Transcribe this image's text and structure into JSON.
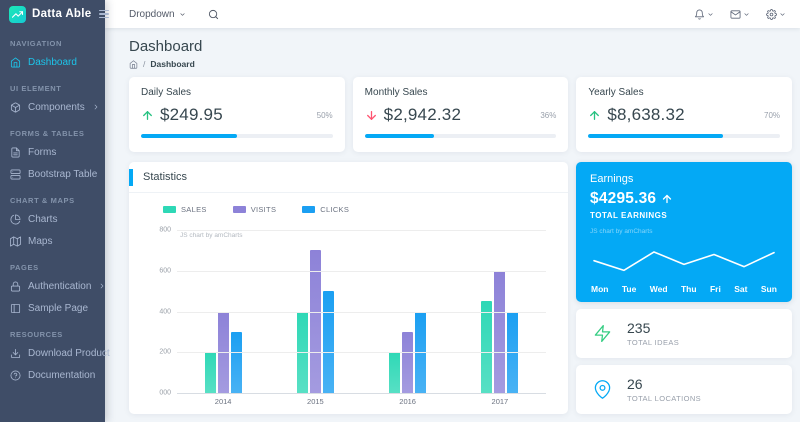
{
  "brand": {
    "name": "Datta Able"
  },
  "navbar": {
    "dropdown_label": "Dropdown",
    "right_icons": [
      {
        "icon": "bell-icon"
      },
      {
        "icon": "mail-icon"
      },
      {
        "icon": "gear-icon"
      }
    ]
  },
  "sidebar": {
    "sections": [
      {
        "caption": "NAVIGATION",
        "items": [
          {
            "label": "Dashboard",
            "icon": "home-icon",
            "active": true
          }
        ]
      },
      {
        "caption": "UI ELEMENT",
        "items": [
          {
            "label": "Components",
            "icon": "box-icon",
            "has_submenu": true
          }
        ]
      },
      {
        "caption": "FORMS & TABLES",
        "items": [
          {
            "label": "Forms",
            "icon": "file-text-icon"
          },
          {
            "label": "Bootstrap Table",
            "icon": "server-icon"
          }
        ]
      },
      {
        "caption": "CHART & MAPS",
        "items": [
          {
            "label": "Charts",
            "icon": "pie-chart-icon"
          },
          {
            "label": "Maps",
            "icon": "map-icon"
          }
        ]
      },
      {
        "caption": "PAGES",
        "items": [
          {
            "label": "Authentication",
            "icon": "lock-icon",
            "has_submenu": true
          },
          {
            "label": "Sample Page",
            "icon": "sidebar-icon"
          }
        ]
      },
      {
        "caption": "RESOURCES",
        "items": [
          {
            "label": "Download Product",
            "icon": "download-icon"
          },
          {
            "label": "Documentation",
            "icon": "help-circle-icon"
          }
        ]
      }
    ]
  },
  "page": {
    "title": "Dashboard",
    "breadcrumb_separator": "/",
    "breadcrumb_current": "Dashboard"
  },
  "sales_cards": [
    {
      "title": "Daily Sales",
      "trend": "up",
      "value": "$249.95",
      "percent": "50%",
      "progress": 50
    },
    {
      "title": "Monthly Sales",
      "trend": "down",
      "value": "$2,942.32",
      "percent": "36%",
      "progress": 36
    },
    {
      "title": "Yearly Sales",
      "trend": "up",
      "value": "$8,638.32",
      "percent": "70%",
      "progress": 70
    }
  ],
  "statistics": {
    "title": "Statistics",
    "attribution": "JS chart by amCharts"
  },
  "earnings": {
    "title": "Earnings",
    "value": "$4295.36",
    "trend": "up",
    "label": "TOTAL EARNINGS",
    "attribution": "JS chart by amCharts"
  },
  "tiles": [
    {
      "value": "235",
      "label": "TOTAL IDEAS",
      "icon": "zap-icon",
      "color": "#36cd83"
    },
    {
      "value": "26",
      "label": "TOTAL LOCATIONS",
      "icon": "map-pin-icon",
      "color": "#04a9f5"
    }
  ],
  "chart_data": [
    {
      "type": "bar",
      "title": "Statistics",
      "categories": [
        "2014",
        "2015",
        "2016",
        "2017"
      ],
      "series": [
        {
          "name": "SALES",
          "color": "#2ed8b6",
          "values": [
            200,
            400,
            200,
            450
          ]
        },
        {
          "name": "VISITS",
          "color": "#8d82d8",
          "values": [
            400,
            700,
            300,
            600
          ]
        },
        {
          "name": "CLICKS",
          "color": "#1b9ff2",
          "values": [
            300,
            500,
            400,
            400
          ]
        }
      ],
      "xlabel": "",
      "ylabel": "",
      "ylim": [
        0,
        800
      ],
      "ytick_labels": [
        "800",
        "600",
        "400",
        "200",
        "000"
      ],
      "grid": true,
      "legend_position": "top"
    },
    {
      "type": "line",
      "title": "Earnings Mon-Sun",
      "x": [
        "Mon",
        "Tue",
        "Wed",
        "Thu",
        "Fri",
        "Sat",
        "Sun"
      ],
      "values": [
        48,
        22,
        72,
        38,
        65,
        32,
        70
      ],
      "ylim": [
        0,
        100
      ],
      "line_color": "#ffffff",
      "grid": false
    }
  ],
  "colors": {
    "primary": "#04a9f5",
    "success": "#26c281",
    "danger": "#ff5370",
    "sidebar_bg": "#3f4d67",
    "active_item": "#1dc4e9",
    "earnings_bg": "#04a9f5"
  }
}
